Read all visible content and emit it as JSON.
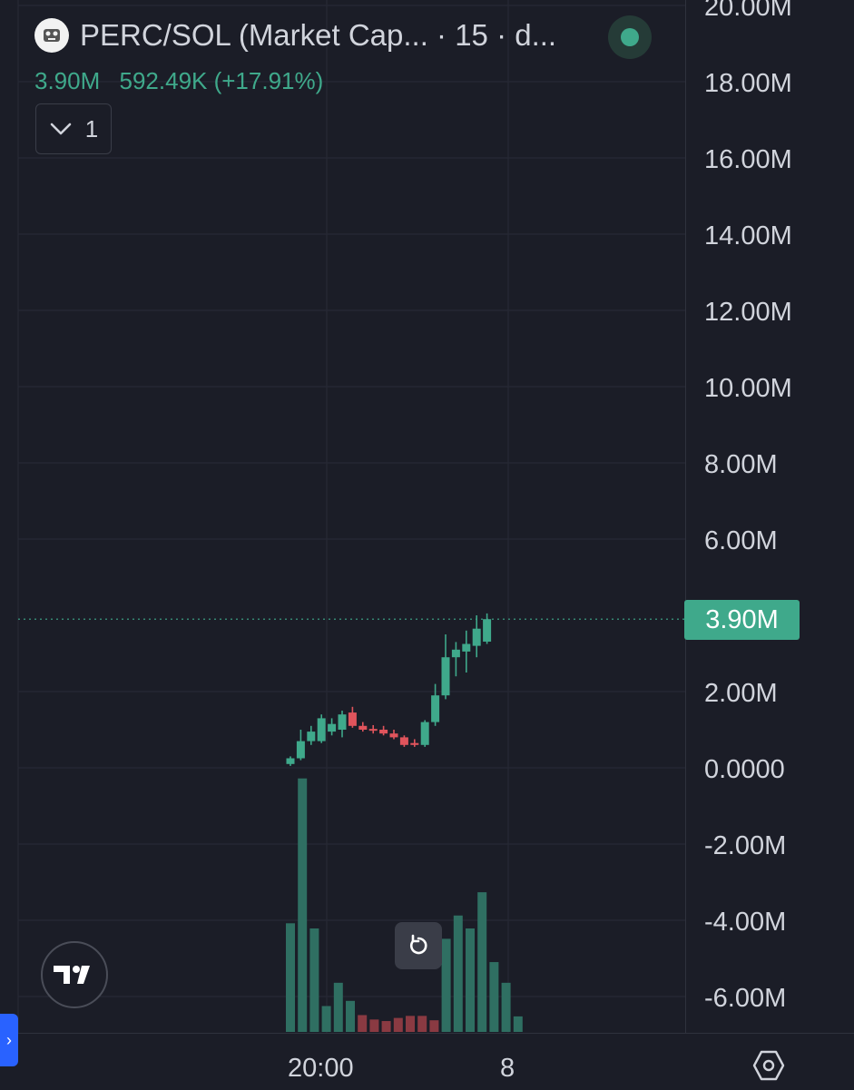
{
  "header": {
    "symbol_title": "PERC/SOL (Market Cap... · 15 · d...",
    "ohlc_value": "3.90M",
    "ohlc_change": "592.49K (+17.91%)",
    "collapse_count": "1"
  },
  "colors": {
    "background": "#1b1d27",
    "grid": "#272a35",
    "up": "#3fa98b",
    "down": "#e0545c",
    "volume_up": "#2f6f62",
    "volume_down": "#8a3a42",
    "accent_blue": "#2962ff"
  },
  "icons": {
    "symbol": "coin-logo-icon",
    "collapse": "chevron-down-icon",
    "reset": "reset-icon",
    "logo": "tradingview-logo-icon",
    "settings": "settings-icon",
    "handle": "chevron-right-icon"
  },
  "price_axis": {
    "labels": [
      "20.00M",
      "18.00M",
      "16.00M",
      "14.00M",
      "12.00M",
      "10.00M",
      "8.00M",
      "6.00M",
      "2.00M",
      "0.0000",
      "-2.00M",
      "-4.00M",
      "-6.00M"
    ],
    "current_price_label": "3.90M"
  },
  "time_axis": {
    "labels": [
      "20:00",
      "8"
    ]
  },
  "chart_data": {
    "type": "candlestick",
    "interval": "15",
    "ylim": [
      -6.9,
      20.3
    ],
    "y_ticks": [
      20,
      18,
      16,
      14,
      12,
      10,
      8,
      6,
      2,
      0,
      -2,
      -4,
      -6
    ],
    "last_price": 3.9,
    "change": "592.49K (+17.91%)",
    "x_labels": [
      "20:00",
      "8"
    ],
    "candles": [
      {
        "o": 0.1,
        "h": 0.3,
        "l": 0.05,
        "c": 0.25
      },
      {
        "o": 0.25,
        "h": 1.0,
        "l": 0.2,
        "c": 0.7
      },
      {
        "o": 0.7,
        "h": 1.1,
        "l": 0.6,
        "c": 0.95
      },
      {
        "o": 0.7,
        "h": 1.4,
        "l": 0.65,
        "c": 1.3
      },
      {
        "o": 0.95,
        "h": 1.3,
        "l": 0.85,
        "c": 1.15
      },
      {
        "o": 1.0,
        "h": 1.5,
        "l": 0.8,
        "c": 1.4
      },
      {
        "o": 1.45,
        "h": 1.6,
        "l": 1.05,
        "c": 1.1
      },
      {
        "o": 1.1,
        "h": 1.2,
        "l": 0.95,
        "c": 1.0
      },
      {
        "o": 1.02,
        "h": 1.12,
        "l": 0.9,
        "c": 0.98
      },
      {
        "o": 1.0,
        "h": 1.1,
        "l": 0.85,
        "c": 0.9
      },
      {
        "o": 0.9,
        "h": 1.0,
        "l": 0.75,
        "c": 0.8
      },
      {
        "o": 0.8,
        "h": 0.85,
        "l": 0.55,
        "c": 0.6
      },
      {
        "o": 0.65,
        "h": 0.75,
        "l": 0.55,
        "c": 0.6
      },
      {
        "o": 0.6,
        "h": 1.25,
        "l": 0.55,
        "c": 1.2
      },
      {
        "o": 1.2,
        "h": 2.2,
        "l": 1.1,
        "c": 1.9
      },
      {
        "o": 1.9,
        "h": 3.5,
        "l": 1.8,
        "c": 2.9
      },
      {
        "o": 2.9,
        "h": 3.3,
        "l": 2.4,
        "c": 3.1
      },
      {
        "o": 3.05,
        "h": 3.6,
        "l": 2.5,
        "c": 3.25
      },
      {
        "o": 3.2,
        "h": 4.0,
        "l": 2.9,
        "c": 3.65
      },
      {
        "o": 3.31,
        "h": 4.05,
        "l": 3.25,
        "c": 3.9
      }
    ],
    "volume": [
      0.42,
      0.98,
      0.4,
      0.1,
      0.19,
      0.12,
      0.065,
      0.048,
      0.042,
      0.054,
      0.062,
      0.062,
      0.045,
      0.36,
      0.45,
      0.4,
      0.54,
      0.27,
      0.19,
      0.06
    ]
  }
}
